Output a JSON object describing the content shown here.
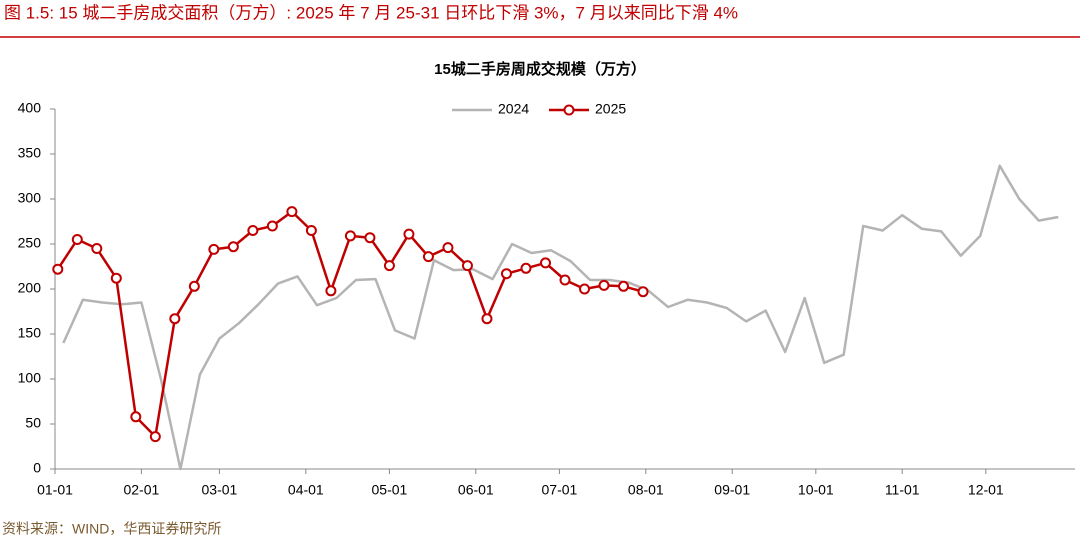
{
  "chart_data": {
    "type": "line",
    "figure_title": "图 1.5:  15 城二手房成交面积（万方）:  2025 年 7 月 25-31 日环比下滑 3%，7 月以来同比下滑 4%",
    "title": "15城二手房周成交规模（万方）",
    "source": "资料来源：WIND，华西证券研究所",
    "xlim": [
      0,
      366
    ],
    "xticks": [
      {
        "value": 0,
        "label": "01-01"
      },
      {
        "value": 31,
        "label": "02-01"
      },
      {
        "value": 59,
        "label": "03-01"
      },
      {
        "value": 90,
        "label": "04-01"
      },
      {
        "value": 120,
        "label": "05-01"
      },
      {
        "value": 151,
        "label": "06-01"
      },
      {
        "value": 181,
        "label": "07-01"
      },
      {
        "value": 212,
        "label": "08-01"
      },
      {
        "value": 243,
        "label": "09-01"
      },
      {
        "value": 273,
        "label": "10-01"
      },
      {
        "value": 304,
        "label": "11-01"
      },
      {
        "value": 334,
        "label": "12-01"
      }
    ],
    "ylim": [
      0,
      400
    ],
    "yticks": [
      0,
      50,
      100,
      150,
      200,
      250,
      300,
      350,
      400
    ],
    "grid": false,
    "legend": "top",
    "series": [
      {
        "name": "2024",
        "color": "#b4b4b4",
        "markers": false,
        "x": [
          3,
          10,
          17,
          24,
          31,
          38,
          45,
          52,
          59,
          66,
          73,
          80,
          87,
          94,
          101,
          108,
          115,
          122,
          129,
          136,
          143,
          150,
          157,
          164,
          171,
          178,
          185,
          192,
          199,
          206,
          213,
          220,
          227,
          234,
          241,
          248,
          255,
          262,
          269,
          276,
          283,
          290,
          297,
          304,
          311,
          318,
          325,
          332,
          339,
          346,
          353,
          360
        ],
        "values": [
          140,
          188,
          185,
          183,
          185,
          100,
          0,
          105,
          145,
          162,
          183,
          206,
          214,
          182,
          190,
          210,
          211,
          154,
          145,
          232,
          221,
          222,
          211,
          250,
          240,
          243,
          231,
          210,
          210,
          207,
          198,
          180,
          188,
          185,
          179,
          164,
          176,
          130,
          190,
          118,
          127,
          270,
          265,
          282,
          267,
          264,
          237,
          259,
          337,
          300,
          276,
          280
        ]
      },
      {
        "name": "2025",
        "color": "#c00000",
        "markers": true,
        "x": [
          1,
          8,
          15,
          22,
          29,
          36,
          43,
          50,
          57,
          64,
          71,
          78,
          85,
          92,
          99,
          106,
          113,
          120,
          127,
          134,
          141,
          148,
          155,
          162,
          169,
          176,
          183,
          190,
          197,
          204,
          211
        ],
        "values": [
          222,
          255,
          245,
          212,
          58,
          36,
          167,
          203,
          244,
          247,
          265,
          270,
          286,
          265,
          198,
          259,
          257,
          226,
          261,
          236,
          246,
          226,
          167,
          217,
          223,
          229,
          210,
          200,
          204,
          203,
          197
        ]
      }
    ]
  }
}
